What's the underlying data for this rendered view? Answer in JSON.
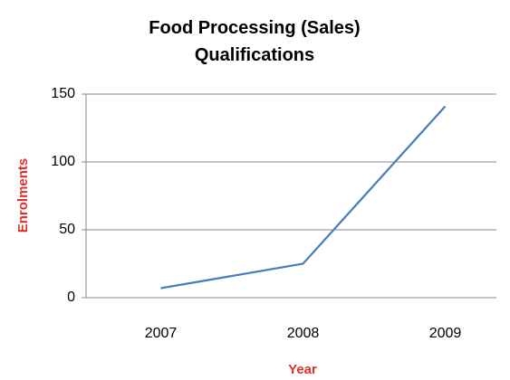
{
  "chart_data": {
    "type": "line",
    "title": "Food Processing (Sales) Qualifications",
    "x_label": "Year",
    "y_label": "Enrolments",
    "categories": [
      "2007",
      "2008",
      "2009"
    ],
    "series": [
      {
        "name": "Enrolments",
        "color": "#4a7ebb",
        "values": [
          7,
          25,
          141
        ]
      }
    ],
    "ylim": [
      0,
      150
    ],
    "yticks": [
      0,
      50,
      100,
      150
    ],
    "grid": true
  }
}
